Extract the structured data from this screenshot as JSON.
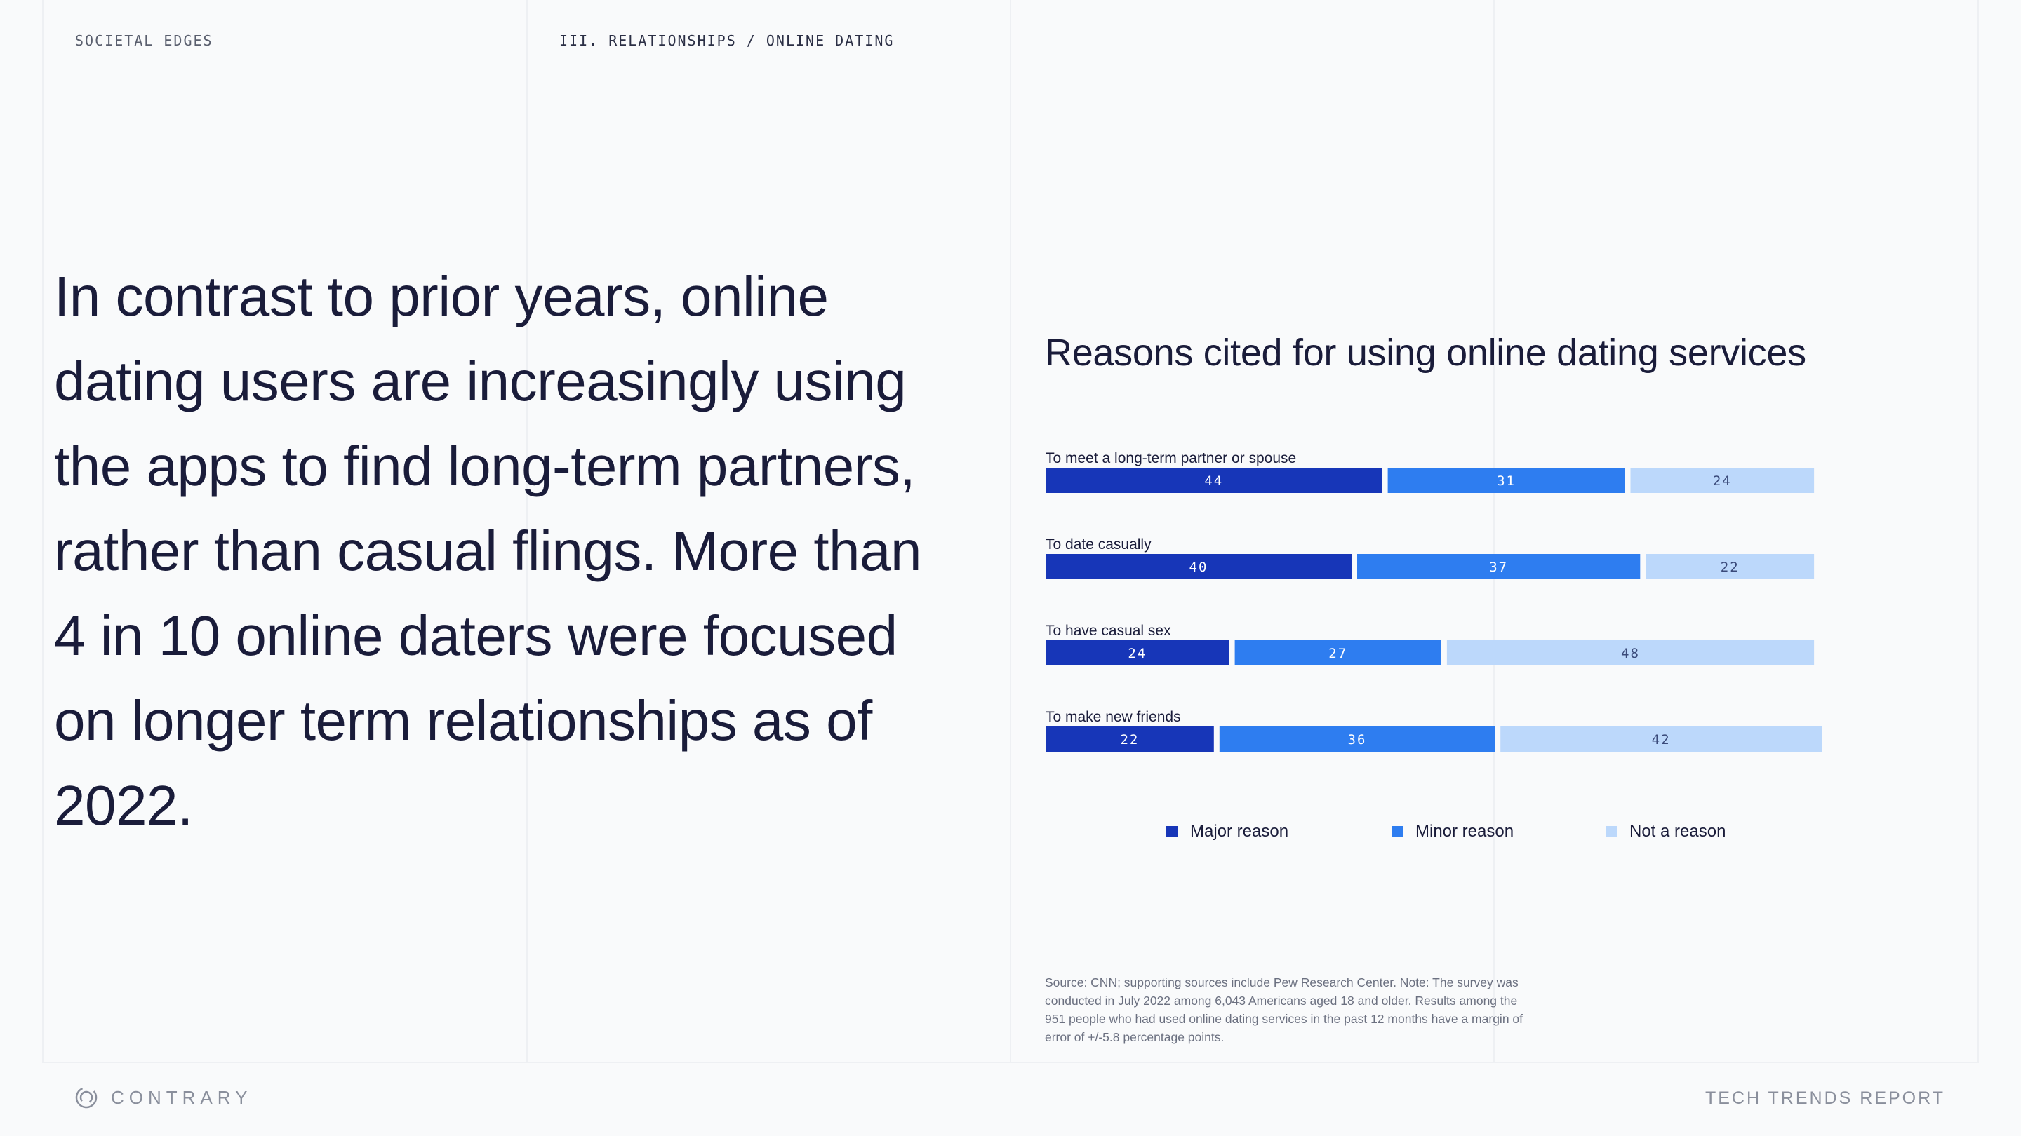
{
  "header": {
    "section_label": "SOCIETAL EDGES",
    "breadcrumb": "III. RELATIONSHIPS / ONLINE DATING"
  },
  "headline": "In contrast to prior years, online dating users are increasingly using the apps to find long-term partners, rather than casual flings. More than 4 in 10 online daters were focused on longer term relationships as of 2022.",
  "chart_data": {
    "type": "bar",
    "orientation": "horizontal",
    "stacked": true,
    "title": "Reasons cited for using online dating services",
    "categories": [
      "To meet a long-term partner or spouse",
      "To date casually",
      "To have casual sex",
      "To make new friends"
    ],
    "series": [
      {
        "name": "Major reason",
        "color": "#1736b8",
        "values": [
          44,
          40,
          24,
          22
        ]
      },
      {
        "name": "Minor reason",
        "color": "#2e7df0",
        "values": [
          31,
          37,
          27,
          36
        ]
      },
      {
        "name": "Not a reason",
        "color": "#bcd8fb",
        "values": [
          24,
          22,
          48,
          42
        ]
      }
    ],
    "xlim": [
      0,
      100
    ],
    "grid": false,
    "legend_position": "bottom"
  },
  "source": "Source: CNN; supporting sources include Pew Research Center. Note: The survey was conducted in July 2022 among 6,043 Americans aged 18 and older. Results among the 951 people who had used online dating services in the past 12 months have a margin of error of +/-5.8 percentage points.",
  "footer": {
    "brand": "CONTRARY",
    "report": "TECH TRENDS REPORT"
  },
  "icons": {
    "logo": "contrary-logo-icon"
  }
}
